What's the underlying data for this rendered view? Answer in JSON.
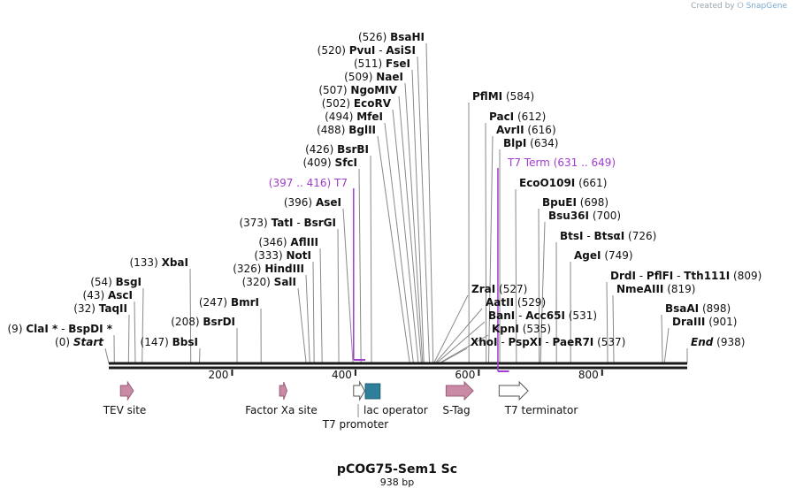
{
  "credit": {
    "prefix": "Created by",
    "brand": "SnapGene"
  },
  "plasmid": {
    "name": "pCOG75-Sem1 Sc",
    "length_label": "938 bp",
    "length_bp": 938
  },
  "ruler": {
    "ticks": [
      {
        "bp": 200,
        "label": "200"
      },
      {
        "bp": 400,
        "label": "400"
      },
      {
        "bp": 600,
        "label": "600"
      },
      {
        "bp": 800,
        "label": "800"
      }
    ]
  },
  "colors": {
    "backbone": "#1a1a1a",
    "purple": "#a03cd0",
    "site_line": "#888888",
    "pink": "#c98aa6",
    "teal": "#2e7f9a"
  },
  "sites": [
    {
      "bp": 526,
      "pos": "(526)",
      "parts": [
        "BsaHI"
      ]
    },
    {
      "bp": 520,
      "pos": "(520)",
      "parts": [
        "PvuI",
        "AsiSI"
      ]
    },
    {
      "bp": 511,
      "pos": "(511)",
      "parts": [
        "FseI"
      ]
    },
    {
      "bp": 509,
      "pos": "(509)",
      "parts": [
        "NaeI"
      ]
    },
    {
      "bp": 507,
      "pos": "(507)",
      "parts": [
        "NgoMIV"
      ]
    },
    {
      "bp": 502,
      "pos": "(502)",
      "parts": [
        "EcoRV"
      ]
    },
    {
      "bp": 494,
      "pos": "(494)",
      "parts": [
        "MfeI"
      ]
    },
    {
      "bp": 488,
      "pos": "(488)",
      "parts": [
        "BglII"
      ]
    },
    {
      "bp": 426,
      "pos": "(426)",
      "parts": [
        "BsrBI"
      ]
    },
    {
      "bp": 409,
      "pos": "(409)",
      "parts": [
        "SfcI"
      ]
    },
    {
      "bp": 396,
      "pos": "(396)",
      "parts": [
        "AseI"
      ]
    },
    {
      "bp": 373,
      "pos": "(373)",
      "parts": [
        "TatI",
        "BsrGI"
      ]
    },
    {
      "bp": 346,
      "pos": "(346)",
      "parts": [
        "AflIII"
      ]
    },
    {
      "bp": 333,
      "pos": "(333)",
      "parts": [
        "NotI"
      ]
    },
    {
      "bp": 326,
      "pos": "(326)",
      "parts": [
        "HindIII"
      ]
    },
    {
      "bp": 320,
      "pos": "(320)",
      "parts": [
        "SalI"
      ]
    },
    {
      "bp": 247,
      "pos": "(247)",
      "parts": [
        "BmrI"
      ]
    },
    {
      "bp": 208,
      "pos": "(208)",
      "parts": [
        "BsrDI"
      ]
    },
    {
      "bp": 133,
      "pos": "(133)",
      "parts": [
        "XbaI"
      ]
    },
    {
      "bp": 147,
      "pos": "(147)",
      "parts": [
        "BbsI"
      ]
    },
    {
      "bp": 54,
      "pos": "(54)",
      "parts": [
        "BsgI"
      ]
    },
    {
      "bp": 43,
      "pos": "(43)",
      "parts": [
        "AscI"
      ]
    },
    {
      "bp": 32,
      "pos": "(32)",
      "parts": [
        "TaqII"
      ]
    },
    {
      "bp": 9,
      "pos": "(9)",
      "parts": [
        "ClaI *",
        "BspDI *"
      ]
    },
    {
      "bp": 0,
      "pos": "(0)",
      "parts": [
        "Start"
      ],
      "italic": true
    },
    {
      "bp": 584,
      "pos": "(584)",
      "parts": [
        "PflMI"
      ]
    },
    {
      "bp": 612,
      "pos": "(612)",
      "parts": [
        "PacI"
      ]
    },
    {
      "bp": 616,
      "pos": "(616)",
      "parts": [
        "AvrII"
      ]
    },
    {
      "bp": 634,
      "pos": "(634)",
      "parts": [
        "BlpI"
      ]
    },
    {
      "bp": 661,
      "pos": "(661)",
      "parts": [
        "EcoO109I"
      ]
    },
    {
      "bp": 698,
      "pos": "(698)",
      "parts": [
        "BpuEI"
      ]
    },
    {
      "bp": 700,
      "pos": "(700)",
      "parts": [
        "Bsu36I"
      ]
    },
    {
      "bp": 726,
      "pos": "(726)",
      "parts": [
        "BtsI",
        "BtsαI"
      ]
    },
    {
      "bp": 749,
      "pos": "(749)",
      "parts": [
        "AgeI"
      ]
    },
    {
      "bp": 809,
      "pos": "(809)",
      "parts": [
        "DrdI",
        "PflFI",
        "Tth111I"
      ]
    },
    {
      "bp": 819,
      "pos": "(819)",
      "parts": [
        "NmeAIII"
      ]
    },
    {
      "bp": 898,
      "pos": "(898)",
      "parts": [
        "BsaAI"
      ]
    },
    {
      "bp": 901,
      "pos": "(901)",
      "parts": [
        "DraIII"
      ]
    },
    {
      "bp": 938,
      "pos": "(938)",
      "parts": [
        "End"
      ],
      "italic": true
    },
    {
      "bp": 527,
      "pos": "(527)",
      "parts": [
        "ZraI"
      ]
    },
    {
      "bp": 529,
      "pos": "(529)",
      "parts": [
        "AatII"
      ]
    },
    {
      "bp": 531,
      "pos": "(531)",
      "parts": [
        "BanI",
        "Acc65I"
      ]
    },
    {
      "bp": 535,
      "pos": "(535)",
      "parts": [
        "KpnI"
      ]
    },
    {
      "bp": 537,
      "pos": "(537)",
      "parts": [
        "XhoI",
        "PspXI",
        "PaeR7I"
      ]
    }
  ],
  "primers": [
    {
      "name": "T7",
      "range": "(397 .. 416)",
      "start": 397,
      "end": 416
    },
    {
      "name": "T7 Term",
      "range": "(631 .. 649)",
      "start": 631,
      "end": 649
    }
  ],
  "features": [
    {
      "name": "TEV site",
      "start": 19,
      "end": 40,
      "style": "pink",
      "shape": "arrow"
    },
    {
      "name": "Factor Xa site",
      "start": 277,
      "end": 289,
      "style": "pink",
      "shape": "arrow"
    },
    {
      "name": "T7 promoter",
      "start": 397,
      "end": 415,
      "style": "white",
      "shape": "arrow"
    },
    {
      "name": "lac operator",
      "start": 416,
      "end": 440,
      "style": "teal",
      "shape": "box"
    },
    {
      "name": "S-Tag",
      "start": 547,
      "end": 591,
      "style": "pink",
      "shape": "arrow"
    },
    {
      "name": "T7 terminator",
      "start": 633,
      "end": 680,
      "style": "white",
      "shape": "arrow"
    }
  ]
}
